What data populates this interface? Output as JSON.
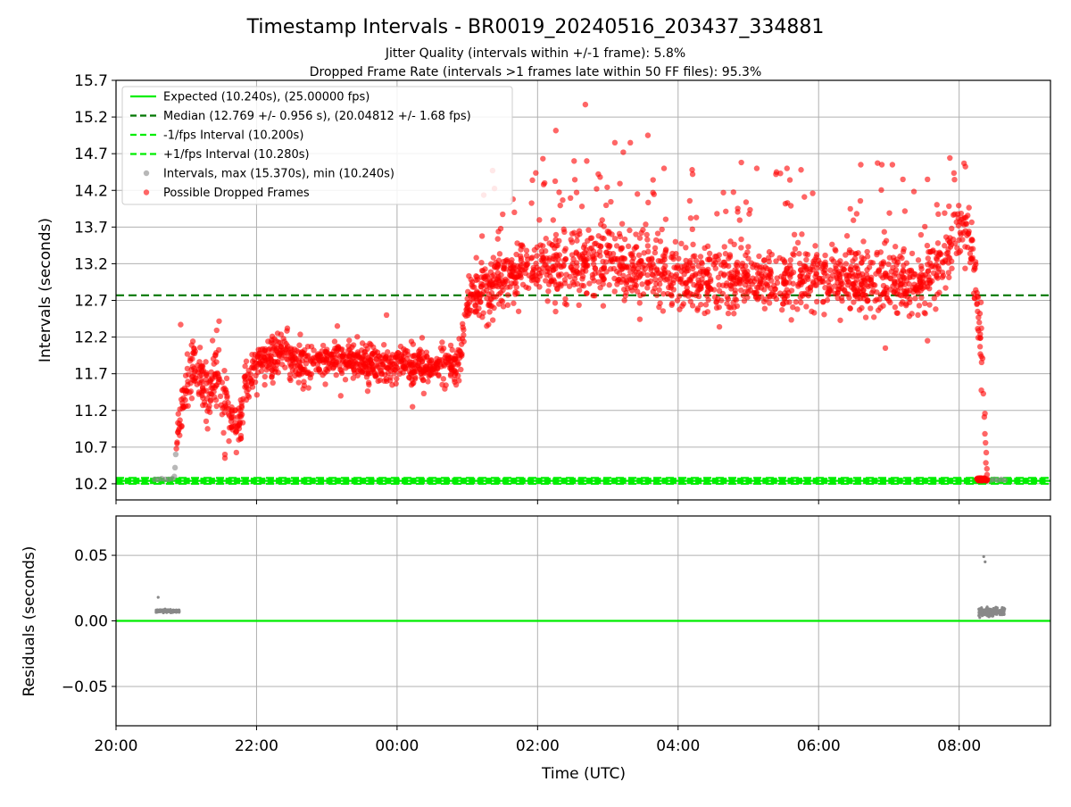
{
  "figure": {
    "title": "Timestamp Intervals - BR0019_20240516_203437_334881",
    "subtitle_line1": "Jitter Quality (intervals within +/-1 frame): 5.8%",
    "subtitle_line2": "Dropped Frame Rate (intervals >1 frames late within 50 FF files): 95.3%"
  },
  "colors": {
    "expected": "#00ee00",
    "median": "#007700",
    "dropped": "#ff0000",
    "intervals": "#888888",
    "grid": "#b0b0b0"
  },
  "chart_data": [
    {
      "type": "scatter",
      "xlabel": "",
      "ylabel": "Intervals (seconds)",
      "x_ticks": [
        "20:00",
        "22:00",
        "00:00",
        "02:00",
        "04:00",
        "06:00",
        "08:00"
      ],
      "x_tick_hours": [
        0,
        2,
        4,
        6,
        8,
        10,
        12
      ],
      "xlim_hours": [
        0,
        13.3
      ],
      "ylim": [
        9.98,
        15.7
      ],
      "y_ticks": [
        10.2,
        10.7,
        11.2,
        11.7,
        12.2,
        12.7,
        13.2,
        13.7,
        14.2,
        14.7,
        15.2,
        15.7
      ],
      "grid": true,
      "legend_position": "top-left",
      "legend": [
        {
          "label": "Expected (10.240s), (25.00000 fps)",
          "style": "solid",
          "color": "#00ee00"
        },
        {
          "label": "Median (12.769 +/- 0.956 s), (20.04812 +/- 1.68 fps)",
          "style": "dashed",
          "color": "#007700"
        },
        {
          "label": "-1/fps Interval (10.200s)",
          "style": "dashed",
          "color": "#00ee00"
        },
        {
          "label": "+1/fps Interval (10.280s)",
          "style": "dashed",
          "color": "#00ee00"
        },
        {
          "label": "Intervals, max (15.370s), min (10.240s)",
          "style": "marker",
          "color": "#888888"
        },
        {
          "label": "Possible Dropped Frames",
          "style": "marker",
          "color": "#ff0000"
        }
      ],
      "lines": {
        "expected": 10.24,
        "median": 12.769,
        "minus_one_fps": 10.2,
        "plus_one_fps": 10.28
      },
      "trend_hours": [
        0.85,
        0.95,
        1.1,
        1.3,
        1.45,
        1.6,
        1.75,
        1.85,
        2.0,
        2.2,
        2.4,
        2.6,
        3.0,
        3.5,
        4.0,
        4.5,
        4.9,
        5.0,
        5.1,
        5.5,
        5.8,
        6.0,
        6.5,
        7.0,
        7.5,
        8.0,
        8.5,
        9.0,
        9.5,
        10.0,
        10.5,
        11.0,
        11.5,
        11.8,
        12.0,
        12.1,
        12.2,
        12.25,
        12.3,
        12.35,
        12.4
      ],
      "trend_values": [
        10.7,
        11.3,
        11.9,
        11.3,
        11.85,
        11.2,
        10.9,
        11.6,
        11.8,
        11.9,
        12.05,
        11.85,
        11.9,
        11.85,
        11.85,
        11.8,
        11.85,
        12.65,
        12.8,
        12.95,
        13.15,
        13.2,
        13.2,
        13.2,
        13.15,
        13.05,
        12.95,
        13.0,
        12.95,
        13.05,
        12.95,
        12.95,
        12.95,
        13.3,
        13.6,
        13.7,
        13.3,
        12.8,
        12.2,
        11.2,
        10.24
      ],
      "spread_values": [
        0.15,
        0.25,
        0.3,
        0.3,
        0.3,
        0.3,
        0.25,
        0.22,
        0.2,
        0.2,
        0.2,
        0.2,
        0.18,
        0.18,
        0.18,
        0.18,
        0.18,
        0.2,
        0.25,
        0.3,
        0.3,
        0.3,
        0.35,
        0.35,
        0.35,
        0.3,
        0.3,
        0.3,
        0.3,
        0.3,
        0.3,
        0.3,
        0.3,
        0.3,
        0.3,
        0.3,
        0.3,
        0.3,
        0.4,
        0.4,
        0.05
      ],
      "outlier_points": [
        [
          5.36,
          14.47
        ],
        [
          5.65,
          14.08
        ],
        [
          6.68,
          15.37
        ],
        [
          6.7,
          14.6
        ],
        [
          6.52,
          14.6
        ],
        [
          7.1,
          14.85
        ],
        [
          7.32,
          14.85
        ],
        [
          7.57,
          14.95
        ],
        [
          7.22,
          14.72
        ],
        [
          7.8,
          14.5
        ],
        [
          8.2,
          14.48
        ],
        [
          8.9,
          14.58
        ],
        [
          9.12,
          14.5
        ],
        [
          9.55,
          14.5
        ],
        [
          9.4,
          14.45
        ],
        [
          9.75,
          14.48
        ],
        [
          10.6,
          14.55
        ],
        [
          10.9,
          14.55
        ],
        [
          11.05,
          14.55
        ],
        [
          11.55,
          14.35
        ],
        [
          11.2,
          14.35
        ],
        [
          10.95,
          12.05
        ],
        [
          11.55,
          12.15
        ],
        [
          9.9,
          12.55
        ],
        [
          6.1,
          14.3
        ],
        [
          5.8,
          13.2
        ],
        [
          2.3,
          12.25
        ],
        [
          3.15,
          12.35
        ],
        [
          3.85,
          12.5
        ],
        [
          3.6,
          11.55
        ],
        [
          4.22,
          11.25
        ],
        [
          0.92,
          12.37
        ],
        [
          1.55,
          10.55
        ],
        [
          1.55,
          10.6
        ]
      ],
      "normal_points": [
        [
          0.55,
          10.26
        ],
        [
          0.6,
          10.26
        ],
        [
          0.65,
          10.27
        ],
        [
          0.7,
          10.26
        ],
        [
          0.75,
          10.26
        ],
        [
          0.8,
          10.27
        ],
        [
          0.84,
          10.42
        ],
        [
          0.85,
          10.6
        ],
        [
          0.83,
          10.3
        ],
        [
          12.3,
          10.25
        ],
        [
          12.35,
          10.26
        ],
        [
          12.4,
          10.25
        ],
        [
          12.45,
          10.25
        ],
        [
          12.5,
          10.26
        ],
        [
          12.55,
          10.25
        ],
        [
          12.6,
          10.26
        ],
        [
          12.65,
          10.25
        ]
      ],
      "dropped_seed": 19
    },
    {
      "type": "scatter",
      "xlabel": "Time (UTC)",
      "ylabel": "Residuals (seconds)",
      "x_ticks": [
        "20:00",
        "22:00",
        "00:00",
        "02:00",
        "04:00",
        "06:00",
        "08:00"
      ],
      "x_tick_hours": [
        0,
        2,
        4,
        6,
        8,
        10,
        12
      ],
      "xlim_hours": [
        0,
        13.3
      ],
      "ylim": [
        -0.08,
        0.08
      ],
      "y_ticks": [
        0.05,
        0.0,
        -0.05
      ],
      "y_tick_labels": [
        "0.05",
        "0.00",
        "−0.05"
      ],
      "grid": true,
      "zero_line": 0.0,
      "residual_points": [
        [
          0.6,
          0.018
        ],
        [
          12.35,
          0.049
        ],
        [
          12.37,
          0.045
        ]
      ],
      "residual_clusters": [
        {
          "from_hours": 0.57,
          "to_hours": 0.9,
          "value": 0.0075,
          "spread": 0.001
        },
        {
          "from_hours": 12.28,
          "to_hours": 12.65,
          "value": 0.007,
          "spread": 0.003
        }
      ]
    }
  ]
}
